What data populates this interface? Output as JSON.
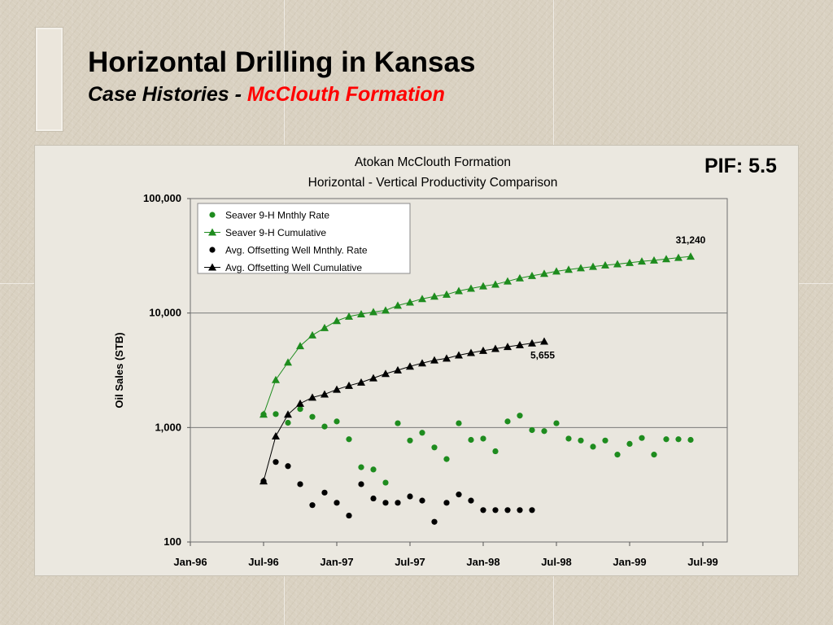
{
  "slide": {
    "title": "Horizontal Drilling in Kansas",
    "subtitle_prefix": "Case Histories - ",
    "subtitle_highlight": "McClouth Formation",
    "pif_label": "PIF: 5.5"
  },
  "colors": {
    "green": "#1e8c1e",
    "black": "#000000",
    "highlight_red": "#ff0000"
  },
  "chart_data": {
    "type": "scatter",
    "title_line1": "Atokan McClouth Formation",
    "title_line2": "Horizontal - Vertical Productivity Comparison",
    "ylabel": "Oil Sales (STB)",
    "xlabel": "",
    "y_scale": "log",
    "ylim": [
      100,
      100000
    ],
    "y_ticks": [
      100,
      1000,
      10000,
      100000
    ],
    "y_tick_labels": [
      "100",
      "1,000",
      "10,000",
      "100,000"
    ],
    "xlim": [
      "1996-01",
      "1999-09"
    ],
    "x_ticks": [
      "1996-01",
      "1996-07",
      "1997-01",
      "1997-07",
      "1998-01",
      "1998-07",
      "1999-01",
      "1999-07"
    ],
    "x_tick_labels": [
      "Jan-96",
      "Jul-96",
      "Jan-97",
      "Jul-97",
      "Jan-98",
      "Jul-98",
      "Jan-99",
      "Jul-99"
    ],
    "grid": "horizontal major lines",
    "legend_position": "top-left",
    "series": [
      {
        "name": "Seaver 9-H Mnthly Rate",
        "marker": "circle",
        "color": "#1e8c1e",
        "line": false,
        "x": [
          "1996-07",
          "1996-08",
          "1996-09",
          "1996-10",
          "1996-11",
          "1996-12",
          "1997-01",
          "1997-02",
          "1997-03",
          "1997-04",
          "1997-05",
          "1997-06",
          "1997-07",
          "1997-08",
          "1997-09",
          "1997-10",
          "1997-11",
          "1997-12",
          "1998-01",
          "1998-02",
          "1998-03",
          "1998-04",
          "1998-05",
          "1998-06",
          "1998-07",
          "1998-08",
          "1998-09",
          "1998-10",
          "1998-11",
          "1998-12",
          "1999-01",
          "1999-02",
          "1999-03",
          "1999-04",
          "1999-05",
          "1999-06"
        ],
        "y": [
          1300,
          1310,
          1100,
          1450,
          1240,
          1020,
          1130,
          790,
          450,
          430,
          330,
          1090,
          770,
          900,
          670,
          530,
          1090,
          780,
          800,
          620,
          1130,
          1270,
          950,
          930,
          1090,
          800,
          770,
          680,
          770,
          580,
          720,
          810,
          580,
          790,
          790,
          780
        ]
      },
      {
        "name": "Seaver 9-H Cumulative",
        "marker": "triangle",
        "color": "#1e8c1e",
        "line": true,
        "x": [
          "1996-07",
          "1996-08",
          "1996-09",
          "1996-10",
          "1996-11",
          "1996-12",
          "1997-01",
          "1997-02",
          "1997-03",
          "1997-04",
          "1997-05",
          "1997-06",
          "1997-07",
          "1997-08",
          "1997-09",
          "1997-10",
          "1997-11",
          "1997-12",
          "1998-01",
          "1998-02",
          "1998-03",
          "1998-04",
          "1998-05",
          "1998-06",
          "1998-07",
          "1998-08",
          "1998-09",
          "1998-10",
          "1998-11",
          "1998-12",
          "1999-01",
          "1999-02",
          "1999-03",
          "1999-04",
          "1999-05",
          "1999-06"
        ],
        "y": [
          1300,
          2610,
          3710,
          5160,
          6400,
          7420,
          8550,
          9340,
          9790,
          10220,
          10550,
          11640,
          12410,
          13310,
          13980,
          14510,
          15600,
          16380,
          17180,
          17800,
          18930,
          20200,
          21150,
          22080,
          23170,
          23970,
          24740,
          25420,
          26190,
          26770,
          27490,
          28300,
          28880,
          29670,
          30460,
          31240
        ]
      },
      {
        "name": "Avg. Offsetting Well Mnthly. Rate",
        "marker": "circle",
        "color": "#000000",
        "line": false,
        "x": [
          "1996-07",
          "1996-08",
          "1996-09",
          "1996-10",
          "1996-11",
          "1996-12",
          "1997-01",
          "1997-02",
          "1997-03",
          "1997-04",
          "1997-05",
          "1997-06",
          "1997-07",
          "1997-08",
          "1997-09",
          "1997-10",
          "1997-11",
          "1997-12",
          "1998-01",
          "1998-02",
          "1998-03",
          "1998-04",
          "1998-05"
        ],
        "y": [
          340,
          500,
          460,
          320,
          210,
          270,
          220,
          170,
          320,
          240,
          220,
          220,
          250,
          230,
          150,
          220,
          260,
          230,
          190,
          190,
          190,
          190,
          190
        ]
      },
      {
        "name": "Avg. Offsetting Well Cumulative",
        "marker": "triangle",
        "color": "#000000",
        "line": true,
        "x": [
          "1996-07",
          "1996-08",
          "1996-09",
          "1996-10",
          "1996-11",
          "1996-12",
          "1997-01",
          "1997-02",
          "1997-03",
          "1997-04",
          "1997-05",
          "1997-06",
          "1997-07",
          "1997-08",
          "1997-09",
          "1997-10",
          "1997-11",
          "1997-12",
          "1998-01",
          "1998-02",
          "1998-03",
          "1998-04",
          "1998-05",
          "1998-06"
        ],
        "y": [
          340,
          840,
          1300,
          1620,
          1830,
          1950,
          2150,
          2320,
          2480,
          2700,
          2950,
          3170,
          3420,
          3650,
          3870,
          4020,
          4280,
          4500,
          4690,
          4880,
          5070,
          5260,
          5450,
          5655
        ]
      }
    ],
    "annotations": [
      {
        "text": "31,240",
        "x": "1999-06",
        "y": 31240
      },
      {
        "text": "5,655",
        "x": "1998-06",
        "y": 5655
      }
    ]
  }
}
